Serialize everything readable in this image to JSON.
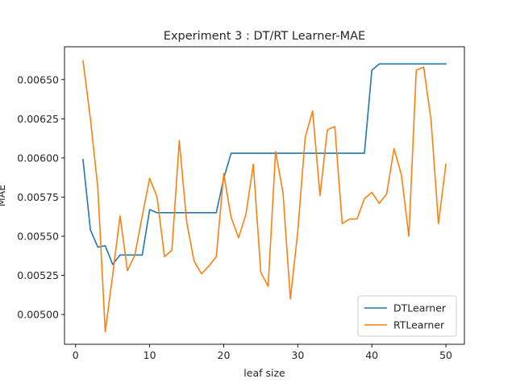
{
  "chart_data": {
    "type": "line",
    "title": "Experiment 3 : DT/RT Learner-MAE",
    "xlabel": "leaf size",
    "ylabel": "MAE",
    "xlim": [
      -1.5,
      52.5
    ],
    "ylim": [
      0.00481,
      0.00671
    ],
    "xticks": [
      0,
      10,
      20,
      30,
      40,
      50
    ],
    "xtick_labels": [
      "0",
      "10",
      "20",
      "30",
      "40",
      "50"
    ],
    "yticks": [
      0.005,
      0.00525,
      0.0055,
      0.00575,
      0.006,
      0.00625,
      0.0065
    ],
    "ytick_labels": [
      "0.00500",
      "0.00525",
      "0.00550",
      "0.00575",
      "0.00600",
      "0.00625",
      "0.00650"
    ],
    "grid": false,
    "legend_position": "lower-right",
    "x": [
      1,
      2,
      3,
      4,
      5,
      6,
      7,
      8,
      9,
      10,
      11,
      12,
      13,
      14,
      15,
      16,
      17,
      18,
      19,
      20,
      21,
      22,
      23,
      24,
      25,
      26,
      27,
      28,
      29,
      30,
      31,
      32,
      33,
      34,
      35,
      36,
      37,
      38,
      39,
      40,
      41,
      42,
      43,
      44,
      45,
      46,
      47,
      48,
      49,
      50
    ],
    "series": [
      {
        "name": "DTLearner",
        "color": "#1f77b4",
        "values": [
          0.00599,
          0.00554,
          0.00543,
          0.00544,
          0.00532,
          0.00538,
          0.00538,
          0.00538,
          0.00538,
          0.00567,
          0.00565,
          0.00565,
          0.00565,
          0.00565,
          0.00565,
          0.00565,
          0.00565,
          0.00565,
          0.00565,
          0.00587,
          0.00603,
          0.00603,
          0.00603,
          0.00603,
          0.00603,
          0.00603,
          0.00603,
          0.00603,
          0.00603,
          0.00603,
          0.00603,
          0.00603,
          0.00603,
          0.00603,
          0.00603,
          0.00603,
          0.00603,
          0.00603,
          0.00603,
          0.00656,
          0.0066,
          0.0066,
          0.0066,
          0.0066,
          0.0066,
          0.0066,
          0.0066,
          0.0066,
          0.0066,
          0.0066
        ]
      },
      {
        "name": "RTLearner",
        "color": "#ff7f0e",
        "values": [
          0.00662,
          0.00625,
          0.00581,
          0.00489,
          0.00525,
          0.00563,
          0.00528,
          0.00538,
          0.00563,
          0.00587,
          0.00575,
          0.00537,
          0.00541,
          0.00611,
          0.00559,
          0.00534,
          0.00526,
          0.00531,
          0.00537,
          0.0059,
          0.00562,
          0.00549,
          0.00564,
          0.00596,
          0.00527,
          0.00518,
          0.00604,
          0.00578,
          0.0051,
          0.00553,
          0.00613,
          0.0063,
          0.00576,
          0.00618,
          0.0062,
          0.00558,
          0.00561,
          0.00561,
          0.00574,
          0.00578,
          0.00571,
          0.00577,
          0.00606,
          0.00589,
          0.0055,
          0.00656,
          0.00658,
          0.00624,
          0.00558,
          0.00596
        ]
      }
    ]
  }
}
